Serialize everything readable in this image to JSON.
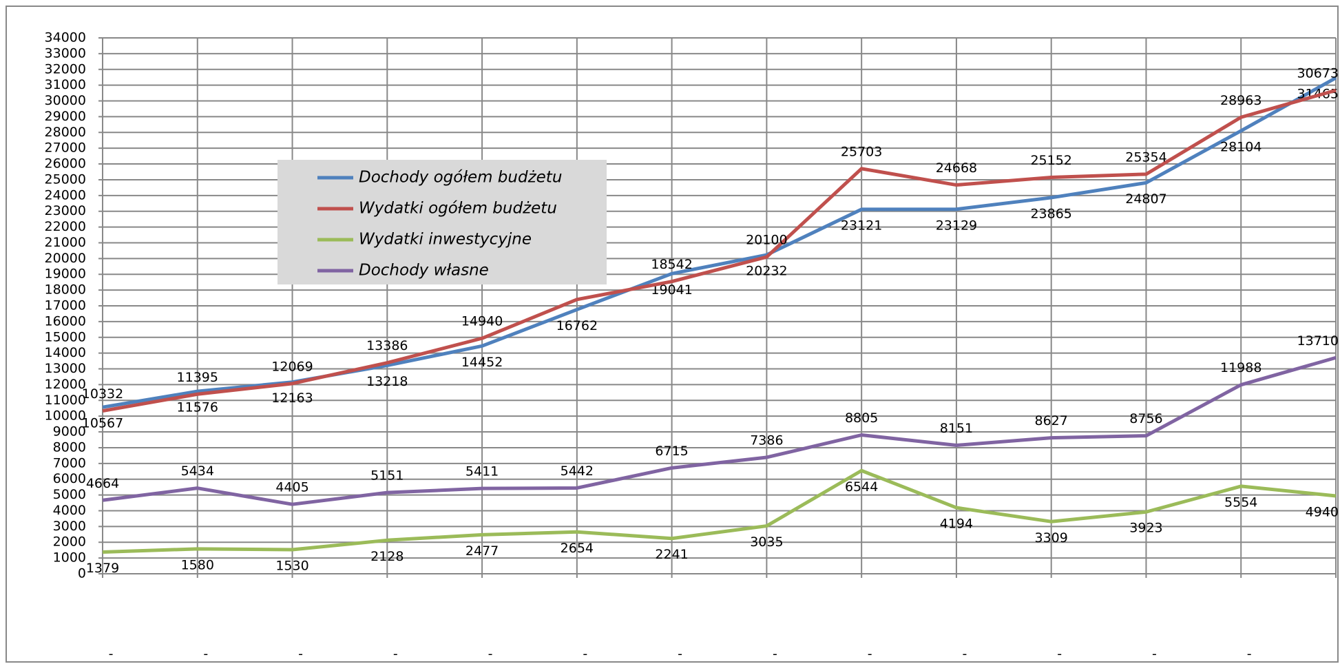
{
  "chart_data": {
    "type": "line",
    "categories": [
      "-",
      "-",
      "-",
      "-",
      "-",
      "-",
      "-",
      "-",
      "-",
      "-",
      "-",
      "-",
      "-",
      "-"
    ],
    "series": [
      {
        "name": "Dochody ogółem budżetu",
        "color": "#4f81bd",
        "label_side": "below",
        "values": [
          10567,
          11576,
          12163,
          13218,
          14452,
          16762,
          19041,
          20232,
          23121,
          23129,
          23865,
          24807,
          28104,
          31465
        ]
      },
      {
        "name": "Wydatki ogółem budżetu",
        "color": "#c0504d",
        "label_side": "above",
        "values": [
          10332,
          11395,
          12069,
          13386,
          14940,
          17400,
          18542,
          20100,
          25703,
          24668,
          25152,
          25354,
          28963,
          30673
        ],
        "value_labels": [
          "10332",
          "11395",
          "12069",
          "13386",
          "14940",
          null,
          "18542",
          "20100",
          "25703",
          "24668",
          "25152",
          "25354",
          "28963",
          "30673"
        ]
      },
      {
        "name": "Wydatki inwestycyjne",
        "color": "#9bbb59",
        "label_side": "below",
        "values": [
          1379,
          1580,
          1530,
          2128,
          2477,
          2654,
          2241,
          3035,
          6544,
          4194,
          3309,
          3923,
          5554,
          4940
        ]
      },
      {
        "name": "Dochody własne",
        "color": "#8064a2",
        "label_side": "above",
        "values": [
          4664,
          5434,
          4405,
          5151,
          5411,
          5442,
          6715,
          7386,
          8805,
          8151,
          8627,
          8756,
          11988,
          13710
        ]
      }
    ],
    "ylim": [
      0,
      34000
    ],
    "yticks": [
      0,
      1000,
      2000,
      3000,
      4000,
      5000,
      6000,
      7000,
      8000,
      9000,
      10000,
      11000,
      12000,
      13000,
      14000,
      15000,
      16000,
      17000,
      18000,
      19000,
      20000,
      21000,
      22000,
      23000,
      24000,
      25000,
      26000,
      27000,
      28000,
      29000,
      30000,
      31000,
      32000,
      33000,
      34000
    ],
    "grid": true,
    "legend": "upper-left"
  }
}
